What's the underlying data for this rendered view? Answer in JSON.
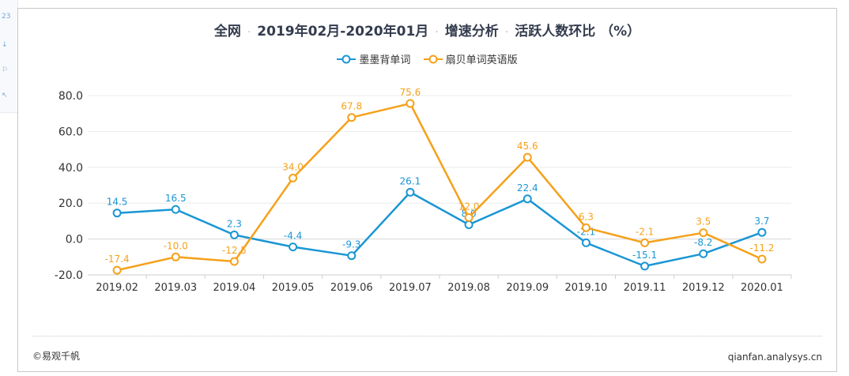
{
  "header": {
    "title_parts": [
      "全网",
      "2019年02月-2020年01月",
      "增速分析",
      "活跃人数环比 （%）"
    ],
    "separator": "·"
  },
  "colors": {
    "series_a": "#1a96d4",
    "series_b": "#f5a11a",
    "grid": "#ececec",
    "axis_text": "#333333"
  },
  "chart_data": {
    "type": "line",
    "title": "全网 · 2019年02月-2020年01月 · 增速分析 · 活跃人数环比 （%）",
    "categories": [
      "2019.02",
      "2019.03",
      "2019.04",
      "2019.05",
      "2019.06",
      "2019.07",
      "2019.08",
      "2019.09",
      "2019.10",
      "2019.11",
      "2019.12",
      "2020.01"
    ],
    "ylim": [
      -20,
      80
    ],
    "yticks": [
      "80.0",
      "60.0",
      "40.0",
      "20.0",
      "0.0",
      "-20.0"
    ],
    "grid": true,
    "legend_position": "top-center",
    "series": [
      {
        "name": "墨墨背单词",
        "values": [
          14.5,
          16.5,
          2.3,
          -4.4,
          -9.3,
          26.1,
          8.0,
          22.4,
          -2.1,
          -15.1,
          -8.2,
          3.7
        ],
        "labels": [
          "14.5",
          "16.5",
          "2.3",
          "-4.4",
          "-9.3",
          "26.1",
          "8.0",
          "22.4",
          "-2.1",
          "-15.1",
          "-8.2",
          "3.7"
        ]
      },
      {
        "name": "扇贝单词英语版",
        "values": [
          -17.4,
          -10.0,
          -12.5,
          34.0,
          67.8,
          75.6,
          12.0,
          45.6,
          6.3,
          -2.1,
          3.5,
          -11.2
        ],
        "labels": [
          "-17.4",
          "-10.0",
          "-12.5",
          "34.0",
          "67.8",
          "75.6",
          "12.0",
          "45.6",
          "6.3",
          "-2.1",
          "3.5",
          "-11.2"
        ]
      }
    ]
  },
  "footer": {
    "source": "©易观千帆",
    "site": "qianfan.analysys.cn"
  },
  "sidebar_fragments": [
    "23",
    "↓",
    "⚐",
    "↖"
  ]
}
